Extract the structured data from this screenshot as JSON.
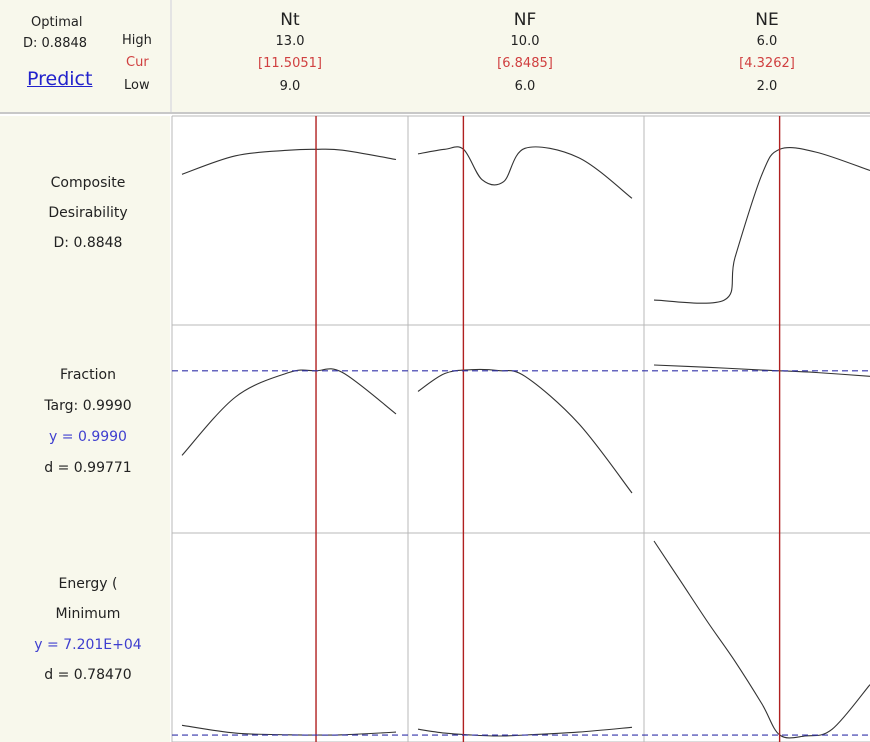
{
  "header": {
    "optimal_label": "Optimal",
    "d_value": "D: 0.8848",
    "predict_label": "Predict",
    "high_label": "High",
    "cur_label": "Cur",
    "low_label": "Low"
  },
  "factors": [
    {
      "name": "Nt",
      "high": "13.0",
      "cur": "[11.5051]",
      "low": "9.0"
    },
    {
      "name": "NF",
      "high": "10.0",
      "cur": "[6.8485]",
      "low": "6.0"
    },
    {
      "name": "NE",
      "high": "6.0",
      "cur": "[4.3262]",
      "low": "2.0"
    }
  ],
  "responses": [
    {
      "line1": "Composite",
      "line2": "Desirability",
      "line3": "D: 0.8848",
      "line4": ""
    },
    {
      "line1": "Fraction",
      "line2": "Targ: 0.9990",
      "line3": "y = 0.9990",
      "line4": "d = 0.99771"
    },
    {
      "line1": "Energy (",
      "line2": "Minimum",
      "line3": "y = 7.201E+04",
      "line4": "d = 0.78470"
    }
  ],
  "colors": {
    "panel_bg": "#f8f8ec",
    "curve": "#333333",
    "current_line": "#b02020",
    "target_line": "#3333aa",
    "cur_text": "#d04040",
    "y_text": "#3f3fcf"
  },
  "chart_data": {
    "type": "line",
    "title": "",
    "columns": [
      {
        "factor": "Nt",
        "low": 9.0,
        "high": 13.0,
        "current": 11.5051
      },
      {
        "factor": "NF",
        "low": 6.0,
        "high": 10.0,
        "current": 6.8485
      },
      {
        "factor": "NE",
        "low": 2.0,
        "high": 6.0,
        "current": 4.3262
      }
    ],
    "rows": [
      {
        "response": "Composite Desirability",
        "ylim": [
          0,
          1
        ],
        "series": [
          {
            "factor": "Nt",
            "x": [
              9.0,
              10.0,
              11.0,
              11.5,
              12.0,
              13.0
            ],
            "y": [
              0.75,
              0.85,
              0.88,
              0.885,
              0.88,
              0.83
            ]
          },
          {
            "factor": "NF",
            "x": [
              6.0,
              6.5,
              6.85,
              7.2,
              7.6,
              8.0,
              9.0,
              10.0
            ],
            "y": [
              0.86,
              0.885,
              0.885,
              0.72,
              0.71,
              0.89,
              0.84,
              0.62
            ]
          },
          {
            "factor": "NE",
            "x": [
              2.0,
              3.3,
              3.5,
              4.0,
              4.33,
              5.0,
              6.0
            ],
            "y": [
              0.07,
              0.07,
              0.3,
              0.75,
              0.885,
              0.87,
              0.77
            ]
          }
        ]
      },
      {
        "response": "Fraction",
        "target": 0.999,
        "series": [
          {
            "factor": "Nt",
            "x": [
              9.0,
              10.0,
              11.0,
              11.5,
              12.0,
              13.0
            ],
            "y": [
              0.55,
              0.86,
              0.99,
              0.999,
              0.99,
              0.77
            ]
          },
          {
            "factor": "NF",
            "x": [
              6.0,
              6.5,
              7.0,
              7.5,
              8.0,
              9.0,
              10.0
            ],
            "y": [
              0.89,
              0.985,
              1.005,
              1.0,
              0.97,
              0.72,
              0.35
            ]
          },
          {
            "factor": "NE",
            "x": [
              2.0,
              3.0,
              4.0,
              4.33,
              5.0,
              6.0
            ],
            "y": [
              1.03,
              1.018,
              1.003,
              0.999,
              0.99,
              0.97
            ]
          }
        ]
      },
      {
        "response": "Energy ( Minimum",
        "y_current": "7.201E+04",
        "series": [
          {
            "factor": "Nt",
            "x": [
              9.0,
              10.0,
              11.0,
              11.5,
              12.0,
              13.0
            ],
            "y": [
              0.5,
              0.1,
              0.01,
              0.0,
              0.01,
              0.15
            ]
          },
          {
            "factor": "NF",
            "x": [
              6.0,
              6.5,
              7.0,
              7.5,
              8.0,
              9.0,
              10.0
            ],
            "y": [
              0.3,
              0.1,
              0.0,
              -0.05,
              0.0,
              0.15,
              0.4
            ]
          },
          {
            "factor": "NE",
            "x": [
              2.0,
              2.5,
              3.0,
              3.5,
              4.0,
              4.33,
              4.8,
              5.3,
              6.0
            ],
            "y": [
              10.0,
              7.9,
              5.8,
              3.8,
              1.6,
              0.0,
              -0.05,
              0.3,
              2.6
            ]
          }
        ]
      }
    ]
  }
}
